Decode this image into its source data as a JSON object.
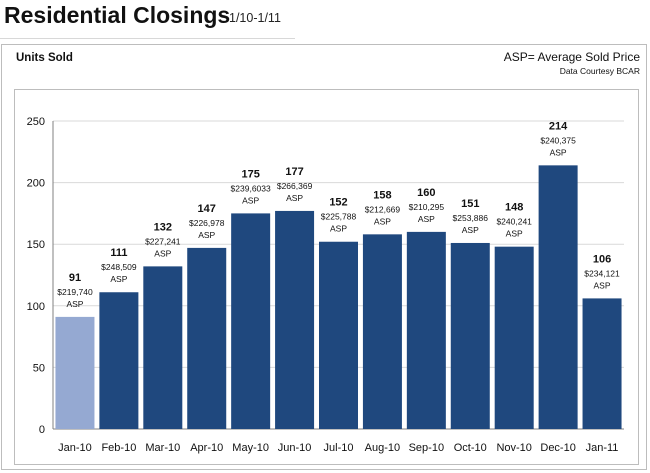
{
  "page": {
    "title": "Residential Closings",
    "date_range": "1/10-1/11"
  },
  "chart_header": {
    "left_label": "Units  Sold",
    "right_label": "ASP= Average Sold Price",
    "credit": "Data Courtesy BCAR"
  },
  "colors": {
    "bar_primary": "#1f487e",
    "bar_highlight": "#95a9d2",
    "gridline": "#d9d9d9",
    "axis": "#808080"
  },
  "chart_data": {
    "type": "bar",
    "categories": [
      "Jan-10",
      "Feb-10",
      "Mar-10",
      "Apr-10",
      "May-10",
      "Jun-10",
      "Jul-10",
      "Aug-10",
      "Sep-10",
      "Oct-10",
      "Nov-10",
      "Dec-10",
      "Jan-11"
    ],
    "values": [
      91,
      111,
      132,
      147,
      175,
      177,
      152,
      158,
      160,
      151,
      148,
      214,
      106
    ],
    "value_labels": [
      "91",
      "111",
      "132",
      "147",
      "175",
      "177",
      "152",
      "158",
      "160",
      "151",
      "148",
      "214",
      "106"
    ],
    "asp_labels": [
      "$219,740",
      "$248,509",
      "$227,241",
      "$226,978",
      "$239,6033",
      "$266,369",
      "$225,788",
      "$212,669",
      "$210,295",
      "$253,886",
      "$240,241",
      "$240,375",
      "$234,121"
    ],
    "asp_suffix": "ASP",
    "highlight_index": 0,
    "ylim": [
      0,
      250
    ],
    "yticks": [
      0,
      50,
      100,
      150,
      200,
      250
    ],
    "ytick_labels": [
      "0",
      "50",
      "100",
      "150",
      "200",
      "250"
    ],
    "grid": true,
    "legend": "none"
  }
}
